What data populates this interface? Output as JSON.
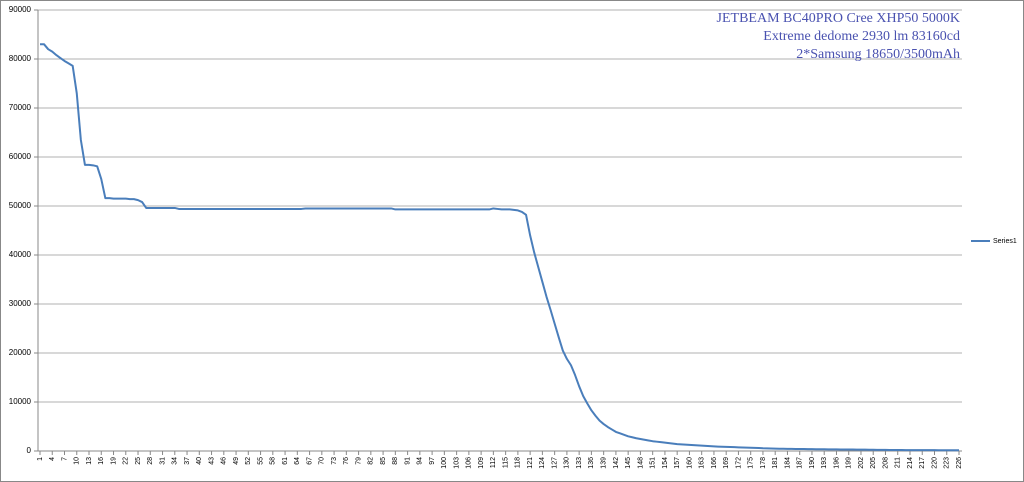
{
  "chart_data": {
    "type": "line",
    "title_lines": [
      "JETBEAM BC40PRO Cree XHP50 5000K",
      "Extreme dedome 2930 lm 83160cd",
      "2*Samsung 18650/3500mAh"
    ],
    "x": [
      1,
      2,
      3,
      4,
      5,
      6,
      7,
      8,
      9,
      10,
      11,
      12,
      13,
      14,
      15,
      16,
      17,
      18,
      19,
      20,
      21,
      22,
      23,
      24,
      25,
      26,
      27,
      28,
      29,
      30,
      31,
      32,
      33,
      34,
      35,
      36,
      37,
      38,
      39,
      40,
      41,
      42,
      43,
      44,
      45,
      46,
      47,
      48,
      49,
      50,
      51,
      52,
      53,
      54,
      55,
      56,
      57,
      58,
      59,
      60,
      61,
      62,
      63,
      64,
      65,
      66,
      67,
      68,
      69,
      70,
      71,
      72,
      73,
      74,
      75,
      76,
      77,
      78,
      79,
      80,
      81,
      82,
      83,
      84,
      85,
      86,
      87,
      88,
      89,
      90,
      91,
      92,
      93,
      94,
      95,
      96,
      97,
      98,
      99,
      100,
      101,
      102,
      103,
      104,
      105,
      106,
      107,
      108,
      109,
      110,
      111,
      112,
      113,
      114,
      115,
      116,
      117,
      118,
      119,
      120,
      121,
      122,
      123,
      124,
      125,
      126,
      127,
      128,
      129,
      130,
      131,
      132,
      133,
      134,
      135,
      136,
      137,
      138,
      139,
      140,
      141,
      142,
      143,
      144,
      145,
      146,
      147,
      148,
      149,
      150,
      151,
      152,
      153,
      154,
      155,
      156,
      157,
      158,
      159,
      160,
      161,
      162,
      163,
      164,
      165,
      166,
      167,
      168,
      169,
      170,
      171,
      172,
      173,
      174,
      175,
      176,
      177,
      178,
      179,
      180,
      181,
      182,
      183,
      184,
      185,
      186,
      187,
      188,
      189,
      190,
      191,
      192,
      193,
      194,
      195,
      196,
      197,
      198,
      199,
      200,
      201,
      202,
      203,
      204,
      205,
      206,
      207,
      208,
      209,
      210,
      211,
      212,
      213,
      214,
      215,
      216,
      217,
      218,
      219,
      220,
      221,
      222,
      223,
      224,
      225,
      226
    ],
    "series": [
      {
        "name": "Series1",
        "color": "#4a7ebb",
        "values": [
          83000,
          83000,
          82000,
          81500,
          80800,
          80200,
          79600,
          79100,
          78600,
          73000,
          63500,
          58400,
          58400,
          58300,
          58100,
          55500,
          51600,
          51600,
          51500,
          51500,
          51500,
          51500,
          51400,
          51400,
          51200,
          50800,
          49600,
          49600,
          49600,
          49600,
          49600,
          49600,
          49600,
          49600,
          49400,
          49400,
          49400,
          49400,
          49400,
          49400,
          49400,
          49400,
          49400,
          49400,
          49400,
          49400,
          49400,
          49400,
          49400,
          49400,
          49400,
          49400,
          49400,
          49400,
          49400,
          49400,
          49400,
          49400,
          49400,
          49400,
          49400,
          49400,
          49400,
          49400,
          49400,
          49500,
          49500,
          49500,
          49500,
          49500,
          49500,
          49500,
          49500,
          49500,
          49500,
          49500,
          49500,
          49500,
          49500,
          49500,
          49500,
          49500,
          49500,
          49500,
          49500,
          49500,
          49500,
          49300,
          49300,
          49300,
          49300,
          49300,
          49300,
          49300,
          49300,
          49300,
          49300,
          49300,
          49300,
          49300,
          49300,
          49300,
          49300,
          49300,
          49300,
          49300,
          49300,
          49300,
          49300,
          49300,
          49300,
          49500,
          49400,
          49300,
          49300,
          49300,
          49200,
          49100,
          48800,
          48200,
          44000,
          40500,
          37500,
          34500,
          31500,
          28800,
          26000,
          23200,
          20500,
          18800,
          17500,
          15500,
          13200,
          11200,
          9700,
          8300,
          7200,
          6200,
          5500,
          4900,
          4400,
          3900,
          3600,
          3300,
          3000,
          2800,
          2600,
          2450,
          2300,
          2150,
          2000,
          1900,
          1800,
          1700,
          1600,
          1500,
          1400,
          1350,
          1300,
          1250,
          1200,
          1150,
          1100,
          1050,
          1000,
          950,
          900,
          870,
          840,
          810,
          780,
          750,
          720,
          690,
          660,
          630,
          600,
          550,
          530,
          510,
          490,
          470,
          450,
          440,
          430,
          420,
          410,
          400,
          390,
          380,
          370,
          360,
          350,
          340,
          330,
          320,
          310,
          300,
          300,
          300,
          290,
          280,
          270,
          260,
          250,
          240,
          230,
          220,
          210,
          200,
          200,
          195,
          190,
          190,
          185,
          180,
          180,
          175,
          170,
          170,
          165,
          160,
          160,
          155,
          150,
          150
        ]
      }
    ],
    "xlim": [
      1,
      226
    ],
    "xticks": [
      1,
      4,
      7,
      10,
      13,
      16,
      19,
      22,
      25,
      28,
      31,
      34,
      37,
      40,
      43,
      46,
      49,
      52,
      55,
      58,
      61,
      64,
      67,
      70,
      73,
      76,
      79,
      82,
      85,
      88,
      91,
      94,
      97,
      100,
      103,
      106,
      109,
      112,
      115,
      118,
      121,
      124,
      127,
      130,
      133,
      136,
      139,
      142,
      145,
      148,
      151,
      154,
      157,
      160,
      163,
      166,
      169,
      172,
      175,
      178,
      181,
      184,
      187,
      190,
      193,
      196,
      199,
      202,
      205,
      208,
      211,
      214,
      217,
      220,
      223,
      226
    ],
    "ylim": [
      0,
      90000
    ],
    "yticks": [
      0,
      10000,
      20000,
      30000,
      40000,
      50000,
      60000,
      70000,
      80000,
      90000
    ],
    "grid": true,
    "legend": "right"
  }
}
